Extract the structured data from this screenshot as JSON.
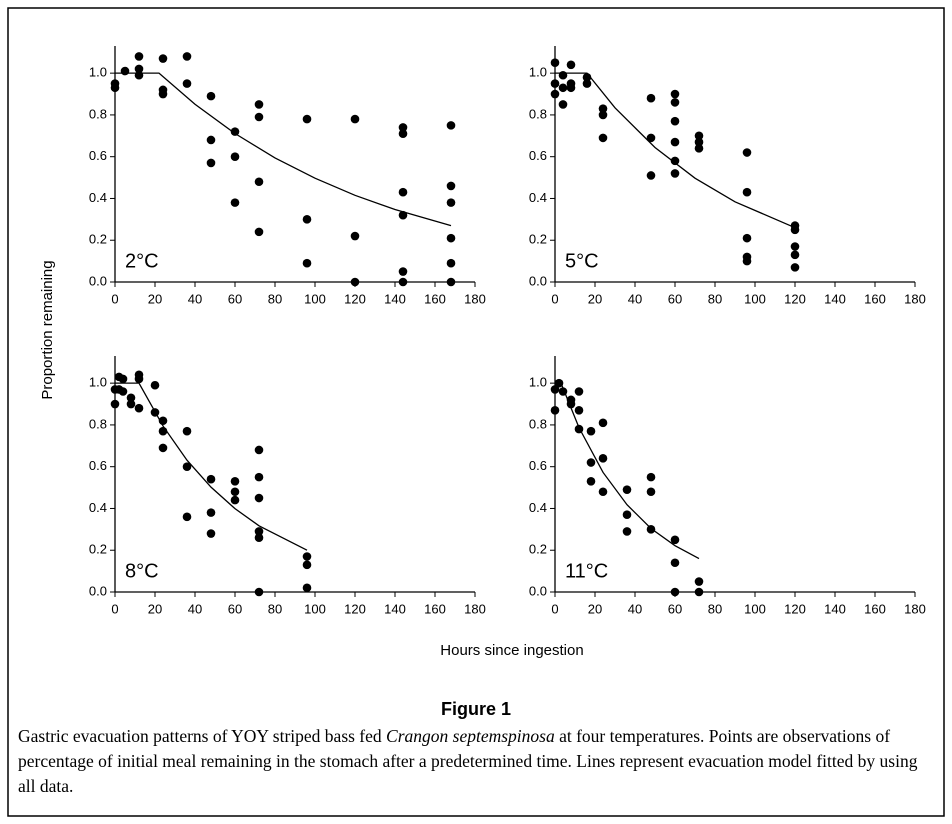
{
  "axis_labels": {
    "x": "Hours since ingestion",
    "y": "Proportion remaining"
  },
  "caption": {
    "title": "Figure 1",
    "text": [
      "Gastric evacuation patterns of YOY striped bass fed ",
      "Crangon septemspinosa",
      " at four temperatures. Points are observations of percentage of initial meal remaining in the stomach after a predetermined time. Lines represent evacuation model fitted by using all data."
    ]
  },
  "chart_data": [
    {
      "type": "scatter",
      "annotation": "2°C",
      "color": "#000000",
      "xlim": [
        0,
        180
      ],
      "xticks": [
        0,
        20,
        40,
        60,
        80,
        100,
        120,
        140,
        160,
        180
      ],
      "ylim": [
        0,
        1.13
      ],
      "yticks": [
        {
          "value": 0,
          "label": "0.0"
        },
        {
          "value": 0.2,
          "label": "0.2"
        },
        {
          "value": 0.4,
          "label": "0.4"
        },
        {
          "value": 0.6,
          "label": "0.6"
        },
        {
          "value": 0.8,
          "label": "0.8"
        },
        {
          "value": 1,
          "label": "1.0"
        }
      ],
      "x": [
        0,
        0,
        5,
        12,
        12,
        12,
        24,
        24,
        24,
        36,
        36,
        48,
        48,
        48,
        60,
        60,
        60,
        72,
        72,
        72,
        72,
        96,
        96,
        96,
        120,
        120,
        120,
        144,
        144,
        144,
        144,
        144,
        144,
        168,
        168,
        168,
        168,
        168,
        168
      ],
      "y": [
        0.95,
        0.93,
        1.01,
        1.08,
        1.02,
        0.99,
        1.07,
        0.92,
        0.9,
        1.08,
        0.95,
        0.89,
        0.68,
        0.57,
        0.72,
        0.6,
        0.38,
        0.85,
        0.79,
        0.48,
        0.24,
        0.78,
        0.3,
        0.09,
        0.78,
        0.22,
        0,
        0.74,
        0.71,
        0.43,
        0.32,
        0.05,
        0,
        0.75,
        0.46,
        0.38,
        0.21,
        0.09,
        0
      ],
      "fit": {
        "x": [
          0,
          22,
          40,
          60,
          80,
          100,
          120,
          140,
          168
        ],
        "y": [
          1,
          1,
          0.851,
          0.711,
          0.594,
          0.497,
          0.415,
          0.347,
          0.27
        ]
      }
    },
    {
      "type": "scatter",
      "annotation": "5°C",
      "color": "#000000",
      "xlim": [
        0,
        180
      ],
      "xticks": [
        0,
        20,
        40,
        60,
        80,
        100,
        120,
        140,
        160,
        180
      ],
      "ylim": [
        0,
        1.13
      ],
      "yticks": [
        {
          "value": 0,
          "label": "0.0"
        },
        {
          "value": 0.2,
          "label": "0.2"
        },
        {
          "value": 0.4,
          "label": "0.4"
        },
        {
          "value": 0.6,
          "label": "0.6"
        },
        {
          "value": 0.8,
          "label": "0.8"
        },
        {
          "value": 1,
          "label": "1.0"
        }
      ],
      "x": [
        0,
        0,
        0,
        4,
        4,
        4,
        8,
        8,
        8,
        16,
        16,
        24,
        24,
        24,
        48,
        48,
        48,
        60,
        60,
        60,
        60,
        60,
        60,
        72,
        72,
        72,
        96,
        96,
        96,
        96,
        96,
        120,
        120,
        120,
        120,
        120
      ],
      "y": [
        1.05,
        0.95,
        0.9,
        0.99,
        0.93,
        0.85,
        1.04,
        0.95,
        0.93,
        0.98,
        0.95,
        0.83,
        0.8,
        0.69,
        0.88,
        0.69,
        0.51,
        0.9,
        0.86,
        0.77,
        0.67,
        0.58,
        0.52,
        0.7,
        0.67,
        0.64,
        0.62,
        0.43,
        0.21,
        0.12,
        0.1,
        0.27,
        0.25,
        0.17,
        0.13,
        0.07
      ],
      "fit": {
        "x": [
          0,
          16,
          30,
          50,
          70,
          90,
          120
        ],
        "y": [
          1,
          1,
          0.834,
          0.644,
          0.497,
          0.384,
          0.26
        ]
      }
    },
    {
      "type": "scatter",
      "annotation": "8°C",
      "color": "#000000",
      "xlim": [
        0,
        180
      ],
      "xticks": [
        0,
        20,
        40,
        60,
        80,
        100,
        120,
        140,
        160,
        180
      ],
      "ylim": [
        0,
        1.13
      ],
      "yticks": [
        {
          "value": 0,
          "label": "0.0"
        },
        {
          "value": 0.2,
          "label": "0.2"
        },
        {
          "value": 0.4,
          "label": "0.4"
        },
        {
          "value": 0.6,
          "label": "0.6"
        },
        {
          "value": 0.8,
          "label": "0.8"
        },
        {
          "value": 1,
          "label": "1.0"
        }
      ],
      "x": [
        0,
        0,
        2,
        2,
        4,
        4,
        8,
        8,
        12,
        12,
        12,
        20,
        20,
        24,
        24,
        24,
        36,
        36,
        36,
        48,
        48,
        48,
        60,
        60,
        60,
        72,
        72,
        72,
        72,
        72,
        72,
        96,
        96,
        96
      ],
      "y": [
        0.97,
        0.9,
        1.03,
        0.97,
        1.02,
        0.96,
        0.93,
        0.9,
        1.04,
        1.02,
        0.88,
        0.99,
        0.86,
        0.82,
        0.77,
        0.69,
        0.77,
        0.6,
        0.36,
        0.54,
        0.38,
        0.28,
        0.53,
        0.48,
        0.44,
        0.68,
        0.55,
        0.45,
        0.29,
        0.26,
        0,
        0.17,
        0.13,
        0.02
      ],
      "fit": {
        "x": [
          0,
          12,
          24,
          36,
          48,
          60,
          72,
          96
        ],
        "y": [
          1,
          1,
          0.795,
          0.631,
          0.502,
          0.399,
          0.317,
          0.2
        ]
      }
    },
    {
      "type": "scatter",
      "annotation": "11°C",
      "color": "#000000",
      "xlim": [
        0,
        180
      ],
      "xticks": [
        0,
        20,
        40,
        60,
        80,
        100,
        120,
        140,
        160,
        180
      ],
      "ylim": [
        0,
        1.13
      ],
      "yticks": [
        {
          "value": 0,
          "label": "0.0"
        },
        {
          "value": 0.2,
          "label": "0.2"
        },
        {
          "value": 0.4,
          "label": "0.4"
        },
        {
          "value": 0.6,
          "label": "0.6"
        },
        {
          "value": 0.8,
          "label": "0.8"
        },
        {
          "value": 1,
          "label": "1.0"
        }
      ],
      "x": [
        0,
        0,
        2,
        4,
        8,
        8,
        12,
        12,
        12,
        18,
        18,
        18,
        24,
        24,
        24,
        36,
        36,
        36,
        48,
        48,
        48,
        60,
        60,
        60,
        72,
        72
      ],
      "y": [
        0.97,
        0.87,
        1,
        0.96,
        0.92,
        0.9,
        0.96,
        0.87,
        0.78,
        0.77,
        0.62,
        0.53,
        0.81,
        0.64,
        0.48,
        0.49,
        0.37,
        0.29,
        0.55,
        0.48,
        0.3,
        0.25,
        0.14,
        0,
        0.05,
        0
      ],
      "fit": {
        "x": [
          0,
          3,
          12,
          24,
          36,
          48,
          60,
          72
        ],
        "y": [
          1,
          1,
          0.787,
          0.573,
          0.418,
          0.304,
          0.222,
          0.16
        ]
      }
    }
  ]
}
